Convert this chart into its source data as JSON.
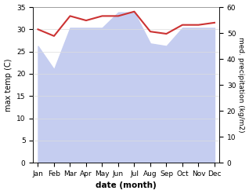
{
  "months": [
    "Jan",
    "Feb",
    "Mar",
    "Apr",
    "May",
    "Jun",
    "Jul",
    "Aug",
    "Sep",
    "Oct",
    "Nov",
    "Dec"
  ],
  "temp_max": [
    30.0,
    28.5,
    33.0,
    32.0,
    33.0,
    33.0,
    34.0,
    29.5,
    29.0,
    31.0,
    31.0,
    31.5
  ],
  "precipitation": [
    45,
    36,
    52,
    52,
    52,
    58,
    58,
    46,
    45,
    52,
    52,
    52
  ],
  "temp_color": "#cc3333",
  "precip_fill_color": "#c5cdf0",
  "xlabel": "date (month)",
  "ylabel_left": "max temp (C)",
  "ylabel_right": "med. precipitation (kg/m2)",
  "ylim_left": [
    0,
    35
  ],
  "ylim_right": [
    0,
    60
  ],
  "background_color": "#ffffff"
}
